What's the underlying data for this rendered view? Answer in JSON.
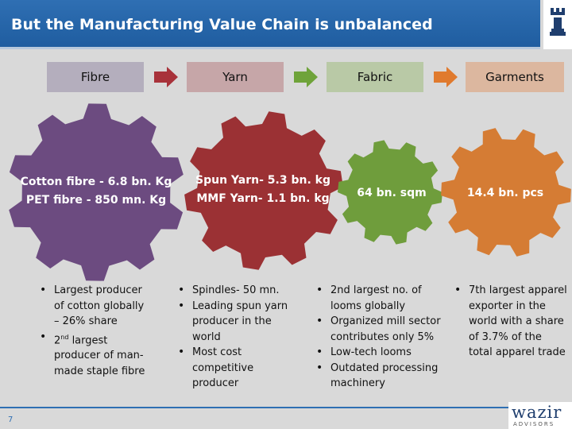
{
  "header": {
    "title": "But the Manufacturing Value Chain is unbalanced"
  },
  "chain": {
    "stages": [
      {
        "label": "Fibre",
        "color": "#b4aebd"
      },
      {
        "label": "Yarn",
        "color": "#c6a6a8"
      },
      {
        "label": "Fabric",
        "color": "#b9c9a6"
      },
      {
        "label": "Garments",
        "color": "#dcb79f"
      }
    ],
    "arrow_colors": [
      "#a8323a",
      "#6fa33a",
      "#e07a2e"
    ]
  },
  "gears": [
    {
      "lines": [
        "Cotton fibre - 6.8 bn. Kg",
        "PET fibre - 850 mn. Kg"
      ],
      "color": "#6c4b80"
    },
    {
      "lines": [
        "Spun Yarn- 5.3 bn. kg",
        "MMF Yarn- 1.1 bn. kg"
      ],
      "color": "#9b3134"
    },
    {
      "lines": [
        "64 bn. sqm"
      ],
      "color": "#6f9d3c"
    },
    {
      "lines": [
        "14.4 bn. pcs"
      ],
      "color": "#d57c34"
    }
  ],
  "details": {
    "fibre": [
      {
        "lines": [
          "Largest producer",
          "of cotton globally",
          "– 26% share"
        ]
      },
      {
        "lines": [
          "2nd largest",
          "producer of man-",
          "made staple fibre"
        ],
        "sup": "nd"
      }
    ],
    "yarn": [
      {
        "lines": [
          "Spindles- 50 mn."
        ]
      },
      {
        "lines": [
          "Leading spun yarn",
          "producer in the",
          "world"
        ]
      },
      {
        "lines": [
          "Most cost",
          "competitive",
          "producer"
        ]
      }
    ],
    "fabric": [
      {
        "lines": [
          "2nd largest no. of",
          "looms globally"
        ]
      },
      {
        "lines": [
          "Organized mill sector",
          "contributes only 5%"
        ]
      },
      {
        "lines": [
          "Low-tech looms"
        ]
      },
      {
        "lines": [
          "Outdated processing",
          "machinery"
        ]
      }
    ],
    "garments": [
      {
        "lines": [
          "7th largest apparel",
          "exporter in the",
          "world with a share",
          "of 3.7% of the",
          "total apparel trade"
        ]
      }
    ]
  },
  "footer": {
    "page_number": "7",
    "brand_name": "wazir",
    "brand_sub": "ADVISORS"
  }
}
